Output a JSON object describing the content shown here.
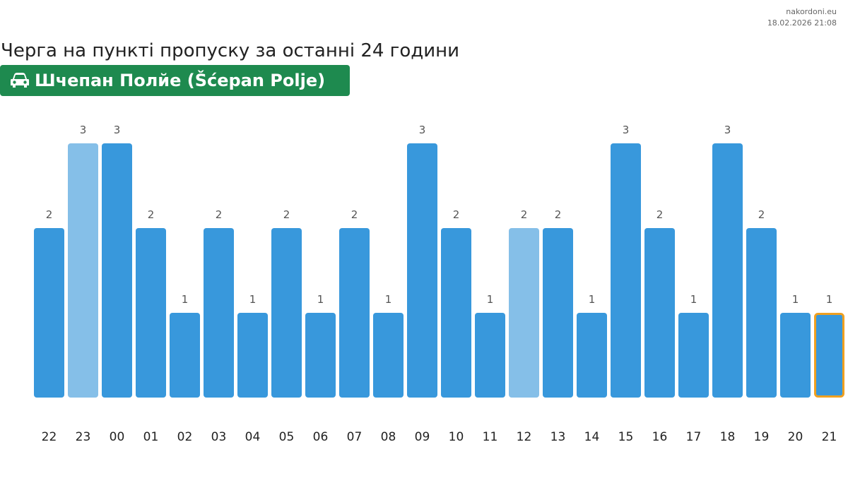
{
  "source": {
    "site": "nakordoni.eu",
    "timestamp": "18.02.2026 21:08"
  },
  "title": "Черга на пункті пропуску за останні 24 години",
  "crossing": {
    "name": "Шчепан Полйе (Šćepan Polje)",
    "icon": "car-icon",
    "color": "#1e8a4f"
  },
  "colors": {
    "bar": "#3898dc",
    "bar_light": "#85bfe8",
    "current_outline": "#f0a020"
  },
  "chart_data": {
    "type": "bar",
    "title": "Черга на пункті пропуску за останні 24 години",
    "categories": [
      "22",
      "23",
      "00",
      "01",
      "02",
      "03",
      "04",
      "05",
      "06",
      "07",
      "08",
      "09",
      "10",
      "11",
      "12",
      "13",
      "14",
      "15",
      "16",
      "17",
      "18",
      "19",
      "20",
      "21"
    ],
    "values": [
      2,
      3,
      3,
      2,
      1,
      2,
      1,
      2,
      1,
      2,
      1,
      3,
      2,
      1,
      2,
      2,
      1,
      3,
      2,
      1,
      3,
      2,
      1,
      1
    ],
    "light_categories": [
      "23",
      "12"
    ],
    "current_category": "21",
    "ylim": [
      0,
      3
    ],
    "grid": false,
    "legend": "none"
  }
}
